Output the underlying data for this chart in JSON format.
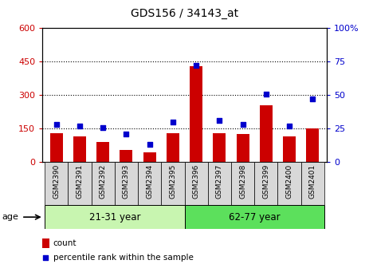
{
  "title": "GDS156 / 34143_at",
  "samples": [
    "GSM2390",
    "GSM2391",
    "GSM2392",
    "GSM2393",
    "GSM2394",
    "GSM2395",
    "GSM2396",
    "GSM2397",
    "GSM2398",
    "GSM2399",
    "GSM2400",
    "GSM2401"
  ],
  "counts": [
    130,
    115,
    90,
    55,
    45,
    130,
    430,
    130,
    125,
    255,
    115,
    150
  ],
  "percentiles": [
    28,
    27,
    26,
    21,
    13,
    30,
    72,
    31,
    28,
    51,
    27,
    47
  ],
  "groups": [
    {
      "label": "21-31 year",
      "start": 0,
      "end": 5,
      "color": "#c8f5b0"
    },
    {
      "label": "62-77 year",
      "start": 6,
      "end": 11,
      "color": "#5ce05c"
    }
  ],
  "ylim_left": [
    0,
    600
  ],
  "ylim_right": [
    0,
    100
  ],
  "yticks_left": [
    0,
    150,
    300,
    450,
    600
  ],
  "yticks_right": [
    0,
    25,
    50,
    75,
    100
  ],
  "bar_color": "#cc0000",
  "scatter_color": "#0000cc",
  "bar_width": 0.55,
  "age_label": "age",
  "legend_count_label": "count",
  "legend_percentile_label": "percentile rank within the sample",
  "grid_color": "#000000",
  "bg_color": "#ffffff",
  "plot_bg": "#ffffff",
  "tick_label_color_left": "#cc0000",
  "tick_label_color_right": "#0000cc",
  "xtick_bg": "#d8d8d8"
}
